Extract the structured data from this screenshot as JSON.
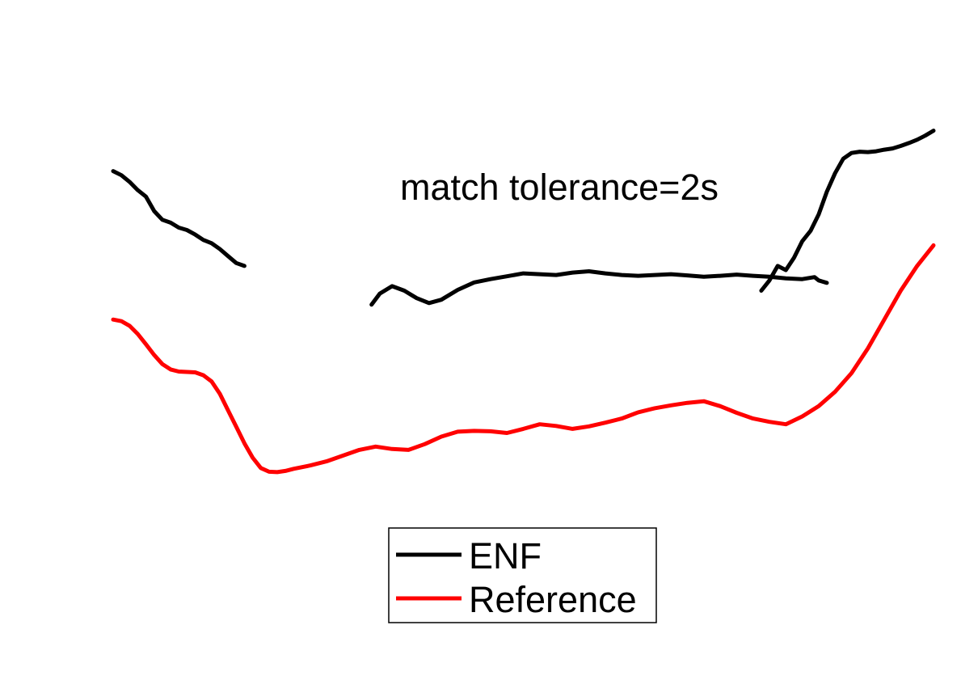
{
  "chart_data": {
    "type": "line",
    "title": "",
    "xlabel": "",
    "ylabel": "",
    "axes_visible": false,
    "grid": false,
    "xlim": [
      0,
      100
    ],
    "ylim": [
      0,
      100
    ],
    "annotation": "match tolerance=2s",
    "legend": {
      "placement": "bottom-center",
      "entries": [
        "ENF",
        "Reference"
      ]
    },
    "series": [
      {
        "name": "ENF",
        "color": "#000000",
        "segments": [
          {
            "x": [
              0,
              1,
              2,
              3,
              4,
              5,
              6,
              7,
              8,
              9,
              10,
              11,
              12,
              13,
              14,
              15,
              16
            ],
            "y": [
              84.0,
              83.0,
              81.4,
              79.4,
              77.8,
              74.3,
              72.2,
              71.5,
              70.3,
              69.7,
              68.6,
              67.3,
              66.5,
              65.1,
              63.4,
              61.7,
              61.0
            ]
          },
          {
            "x": [
              31.5,
              32.5,
              34,
              35.5,
              37,
              38.5,
              40,
              42,
              44,
              46,
              48,
              50,
              52,
              54,
              56,
              58,
              60,
              62,
              64,
              66,
              68,
              70,
              72,
              74,
              76,
              78,
              80,
              82,
              84,
              85.5,
              86,
              87
            ],
            "y": [
              51.6,
              54.3,
              56.1,
              55.0,
              53.2,
              52.0,
              52.8,
              55.2,
              57.0,
              57.8,
              58.5,
              59.2,
              59.0,
              58.8,
              59.4,
              59.7,
              59.2,
              58.8,
              58.6,
              58.8,
              59.0,
              58.7,
              58.4,
              58.6,
              58.9,
              58.6,
              58.4,
              58.0,
              57.8,
              58.3,
              57.5,
              56.9
            ]
          },
          {
            "x": [
              79,
              80,
              81,
              82,
              83,
              84,
              85,
              86,
              87,
              88,
              89,
              90,
              91,
              92,
              93,
              94,
              95,
              96,
              97,
              98,
              99,
              100
            ],
            "y": [
              55.0,
              57.5,
              61.0,
              60.0,
              63.0,
              67.0,
              69.5,
              73.5,
              79.0,
              83.5,
              87.0,
              88.4,
              88.7,
              88.6,
              88.8,
              89.2,
              89.5,
              90.1,
              90.8,
              91.6,
              92.6,
              93.8
            ]
          }
        ]
      },
      {
        "name": "Reference",
        "color": "#ff0000",
        "segments": [
          {
            "x": [
              0,
              1,
              2,
              3,
              4,
              5,
              6,
              7,
              8,
              9,
              10,
              11,
              12,
              13,
              14,
              15,
              16,
              17,
              18,
              19,
              20,
              21,
              22,
              24,
              26,
              28,
              30,
              32,
              34,
              36,
              38,
              40,
              42,
              44,
              46,
              48,
              50,
              52,
              54,
              56,
              58,
              60,
              62,
              64,
              66,
              68,
              70,
              72,
              74,
              76,
              78,
              80,
              82,
              84,
              86,
              88,
              90,
              92,
              94,
              96,
              98,
              100
            ],
            "y": [
              48.0,
              47.6,
              46.5,
              44.5,
              42.0,
              39.4,
              37.2,
              35.9,
              35.4,
              35.3,
              35.2,
              34.5,
              33.0,
              30.0,
              26.0,
              22.0,
              18.0,
              14.5,
              12.0,
              11.1,
              11.0,
              11.3,
              11.8,
              12.6,
              13.6,
              15.0,
              16.4,
              17.2,
              16.6,
              16.4,
              17.8,
              19.6,
              20.8,
              21.0,
              20.9,
              20.5,
              21.5,
              22.6,
              22.2,
              21.5,
              22.1,
              23.0,
              24.0,
              25.5,
              26.5,
              27.2,
              27.8,
              28.2,
              27.0,
              25.4,
              24.0,
              23.2,
              22.6,
              24.5,
              27.0,
              30.5,
              35.0,
              41.0,
              48.0,
              55.0,
              61.0,
              66.0
            ]
          }
        ]
      }
    ]
  }
}
